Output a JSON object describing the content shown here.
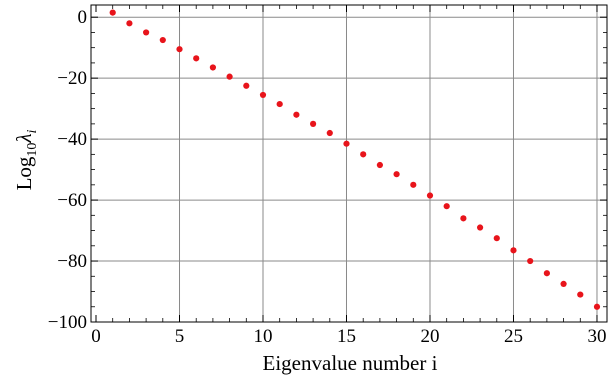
{
  "chart_data": {
    "type": "scatter",
    "xlabel": "Eigenvalue number i",
    "ylabel": {
      "main": "Log",
      "sub1": "10",
      "lambda": "λ",
      "sub2": "i"
    },
    "xlim": [
      -0.3,
      30.6
    ],
    "ylim": [
      -100,
      4
    ],
    "xticks": [
      0,
      5,
      10,
      15,
      20,
      25,
      30
    ],
    "yticks": [
      0,
      -20,
      -40,
      -60,
      -80,
      -100
    ],
    "xtick_labels": [
      "0",
      "5",
      "10",
      "15",
      "20",
      "25",
      "30"
    ],
    "ytick_labels": [
      "0",
      "−20",
      "−40",
      "−60",
      "−80",
      "−100"
    ],
    "grid": true,
    "point_color": "#e8141b",
    "grid_color": "#8a8a8a",
    "series": [
      {
        "x": [
          1,
          2,
          3,
          4,
          5,
          6,
          7,
          8,
          9,
          10,
          11,
          12,
          13,
          14,
          15,
          16,
          17,
          18,
          19,
          20,
          21,
          22,
          23,
          24,
          25,
          26,
          27,
          28,
          29,
          30
        ],
        "y": [
          1.5,
          -2,
          -5,
          -7.5,
          -10.5,
          -13.5,
          -16.5,
          -19.5,
          -22.5,
          -25.5,
          -28.5,
          -32,
          -35,
          -38,
          -41.5,
          -45,
          -48.5,
          -51.5,
          -55,
          -58.5,
          -62,
          -66,
          -69,
          -72.5,
          -76.5,
          -80,
          -84,
          -87.5,
          -91,
          -95
        ]
      }
    ]
  }
}
